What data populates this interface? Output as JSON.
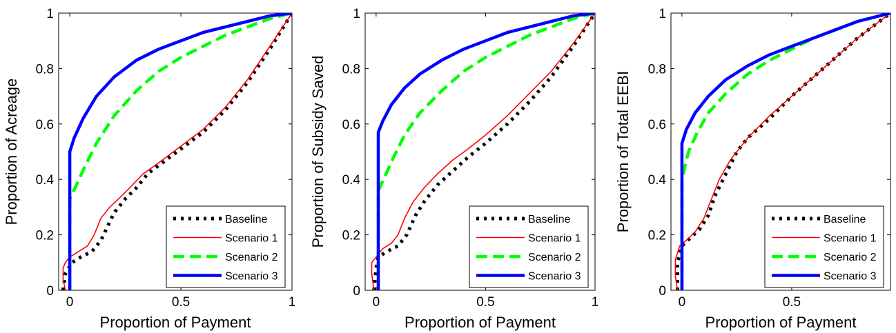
{
  "chart_data": [
    {
      "type": "line",
      "xlabel": "Proportion of Payment",
      "ylabel": "Proportion of Acreage",
      "xlim": [
        -0.05,
        1
      ],
      "ylim": [
        0,
        1
      ],
      "xticks": [
        {
          "v": 0,
          "label": "0"
        },
        {
          "v": 0.5,
          "label": "0.5"
        },
        {
          "v": 1,
          "label": "1"
        }
      ],
      "yticks": [
        {
          "v": 0,
          "label": "0"
        },
        {
          "v": 0.2,
          "label": "0.2"
        },
        {
          "v": 0.4,
          "label": "0.4"
        },
        {
          "v": 0.6,
          "label": "0.6"
        },
        {
          "v": 0.8,
          "label": "0.8"
        },
        {
          "v": 1,
          "label": "1"
        }
      ],
      "legend_position": "bottom-right",
      "series": [
        {
          "name": "Baseline",
          "color": "#000000",
          "style": "dotted",
          "x": [
            -0.03,
            -0.02,
            0.01,
            0.05,
            0.1,
            0.14,
            0.17,
            0.2,
            0.25,
            0.3,
            0.35,
            0.4,
            0.5,
            0.6,
            0.7,
            0.8,
            0.9,
            1.0
          ],
          "y": [
            0.0,
            0.06,
            0.1,
            0.12,
            0.14,
            0.18,
            0.23,
            0.28,
            0.33,
            0.37,
            0.42,
            0.45,
            0.51,
            0.57,
            0.65,
            0.75,
            0.87,
            1.0
          ]
        },
        {
          "name": "Scenario 1",
          "color": "#ff0000",
          "style": "solid",
          "x": [
            -0.02,
            -0.03,
            -0.03,
            -0.02,
            0.0,
            0.04,
            0.08,
            0.11,
            0.14,
            0.18,
            0.22,
            0.27,
            0.33,
            0.4,
            0.5,
            0.6,
            0.7,
            0.8,
            0.9,
            1.0
          ],
          "y": [
            0.0,
            0.04,
            0.08,
            0.1,
            0.12,
            0.14,
            0.16,
            0.2,
            0.26,
            0.3,
            0.33,
            0.37,
            0.42,
            0.46,
            0.52,
            0.58,
            0.66,
            0.76,
            0.88,
            1.0
          ]
        },
        {
          "name": "Scenario 2",
          "color": "#00ff00",
          "style": "dashed",
          "x": [
            0.0,
            0.0,
            0.03,
            0.07,
            0.12,
            0.2,
            0.3,
            0.4,
            0.5,
            0.6,
            0.7,
            0.8,
            0.9,
            1.0
          ],
          "y": [
            0.0,
            0.33,
            0.38,
            0.45,
            0.53,
            0.63,
            0.72,
            0.79,
            0.84,
            0.88,
            0.92,
            0.95,
            0.98,
            1.0
          ]
        },
        {
          "name": "Scenario 3",
          "color": "#0000ff",
          "style": "solid-thick",
          "x": [
            0.0,
            0.0,
            0.02,
            0.06,
            0.12,
            0.2,
            0.3,
            0.4,
            0.5,
            0.6,
            0.7,
            0.8,
            0.9,
            1.0
          ],
          "y": [
            0.0,
            0.5,
            0.55,
            0.62,
            0.7,
            0.77,
            0.83,
            0.87,
            0.9,
            0.93,
            0.95,
            0.97,
            0.99,
            1.0
          ]
        }
      ]
    },
    {
      "type": "line",
      "xlabel": "Proportion of Payment",
      "ylabel": "Proportion of Subsidy Saved",
      "xlim": [
        -0.05,
        1
      ],
      "ylim": [
        0,
        1
      ],
      "xticks": [
        {
          "v": 0,
          "label": "0"
        },
        {
          "v": 0.5,
          "label": "0.5"
        },
        {
          "v": 1,
          "label": "1"
        }
      ],
      "yticks": [
        {
          "v": 0,
          "label": "0"
        },
        {
          "v": 0.2,
          "label": "0.2"
        },
        {
          "v": 0.4,
          "label": "0.4"
        },
        {
          "v": 0.6,
          "label": "0.6"
        },
        {
          "v": 0.8,
          "label": "0.8"
        },
        {
          "v": 1,
          "label": "1"
        }
      ],
      "legend_position": "bottom-right",
      "series": [
        {
          "name": "Baseline",
          "color": "#000000",
          "style": "dotted",
          "x": [
            -0.01,
            0.0,
            0.01,
            0.05,
            0.1,
            0.14,
            0.18,
            0.22,
            0.28,
            0.35,
            0.42,
            0.5,
            0.6,
            0.7,
            0.8,
            0.9,
            1.0
          ],
          "y": [
            0.0,
            0.08,
            0.12,
            0.14,
            0.16,
            0.2,
            0.27,
            0.32,
            0.38,
            0.43,
            0.48,
            0.53,
            0.6,
            0.68,
            0.77,
            0.88,
            1.0
          ]
        },
        {
          "name": "Scenario 1",
          "color": "#ff0000",
          "style": "solid",
          "x": [
            -0.01,
            -0.02,
            -0.02,
            0.0,
            0.03,
            0.07,
            0.1,
            0.13,
            0.17,
            0.22,
            0.28,
            0.35,
            0.42,
            0.5,
            0.6,
            0.7,
            0.8,
            0.9,
            1.0
          ],
          "y": [
            0.0,
            0.06,
            0.1,
            0.12,
            0.15,
            0.17,
            0.2,
            0.26,
            0.32,
            0.37,
            0.42,
            0.47,
            0.51,
            0.56,
            0.63,
            0.71,
            0.79,
            0.89,
            1.0
          ]
        },
        {
          "name": "Scenario 2",
          "color": "#00ff00",
          "style": "dashed",
          "x": [
            0.01,
            0.01,
            0.04,
            0.08,
            0.13,
            0.2,
            0.3,
            0.4,
            0.5,
            0.6,
            0.7,
            0.8,
            0.9,
            1.0
          ],
          "y": [
            0.0,
            0.36,
            0.41,
            0.48,
            0.56,
            0.64,
            0.72,
            0.79,
            0.84,
            0.88,
            0.92,
            0.95,
            0.98,
            1.0
          ]
        },
        {
          "name": "Scenario 3",
          "color": "#0000ff",
          "style": "solid-thick",
          "x": [
            0.01,
            0.01,
            0.03,
            0.07,
            0.13,
            0.2,
            0.3,
            0.4,
            0.5,
            0.6,
            0.7,
            0.8,
            0.9,
            1.0
          ],
          "y": [
            0.0,
            0.57,
            0.61,
            0.67,
            0.73,
            0.78,
            0.83,
            0.87,
            0.9,
            0.93,
            0.95,
            0.97,
            0.99,
            1.0
          ]
        }
      ]
    },
    {
      "type": "line",
      "xlabel": "Proportion of Payment",
      "ylabel": "Proportion of Total EEBI",
      "xlim": [
        -0.05,
        0.95
      ],
      "ylim": [
        0,
        1
      ],
      "xticks": [
        {
          "v": 0,
          "label": "0"
        },
        {
          "v": 0.5,
          "label": "0.5"
        }
      ],
      "yticks": [
        {
          "v": 0,
          "label": "0"
        },
        {
          "v": 0.2,
          "label": "0.2"
        },
        {
          "v": 0.4,
          "label": "0.4"
        },
        {
          "v": 0.6,
          "label": "0.6"
        },
        {
          "v": 0.8,
          "label": "0.8"
        },
        {
          "v": 1,
          "label": "1"
        }
      ],
      "legend_position": "bottom-right",
      "series": [
        {
          "name": "Baseline",
          "color": "#000000",
          "style": "dotted",
          "x": [
            -0.02,
            -0.02,
            0.0,
            0.04,
            0.08,
            0.12,
            0.15,
            0.2,
            0.25,
            0.3,
            0.4,
            0.5,
            0.6,
            0.7,
            0.8,
            0.95
          ],
          "y": [
            0.0,
            0.1,
            0.16,
            0.19,
            0.22,
            0.27,
            0.34,
            0.42,
            0.5,
            0.55,
            0.62,
            0.7,
            0.77,
            0.84,
            0.91,
            1.0
          ]
        },
        {
          "name": "Scenario 1",
          "color": "#ff0000",
          "style": "solid",
          "x": [
            -0.02,
            -0.03,
            -0.03,
            -0.01,
            0.02,
            0.06,
            0.1,
            0.13,
            0.17,
            0.22,
            0.3,
            0.4,
            0.5,
            0.6,
            0.7,
            0.8,
            0.95
          ],
          "y": [
            0.0,
            0.05,
            0.11,
            0.16,
            0.18,
            0.21,
            0.26,
            0.32,
            0.4,
            0.47,
            0.55,
            0.63,
            0.7,
            0.77,
            0.84,
            0.91,
            1.0
          ]
        },
        {
          "name": "Scenario 2",
          "color": "#00ff00",
          "style": "dashed",
          "x": [
            0.0,
            0.0,
            0.03,
            0.07,
            0.12,
            0.2,
            0.3,
            0.4,
            0.5,
            0.6,
            0.7,
            0.8,
            0.95
          ],
          "y": [
            0.0,
            0.4,
            0.5,
            0.57,
            0.64,
            0.71,
            0.78,
            0.83,
            0.87,
            0.91,
            0.94,
            0.97,
            1.0
          ]
        },
        {
          "name": "Scenario 3",
          "color": "#0000ff",
          "style": "solid-thick",
          "x": [
            0.0,
            0.0,
            0.02,
            0.06,
            0.12,
            0.2,
            0.3,
            0.4,
            0.5,
            0.6,
            0.7,
            0.8,
            0.95
          ],
          "y": [
            0.0,
            0.53,
            0.58,
            0.64,
            0.7,
            0.76,
            0.81,
            0.85,
            0.88,
            0.91,
            0.94,
            0.97,
            1.0
          ]
        }
      ]
    }
  ]
}
